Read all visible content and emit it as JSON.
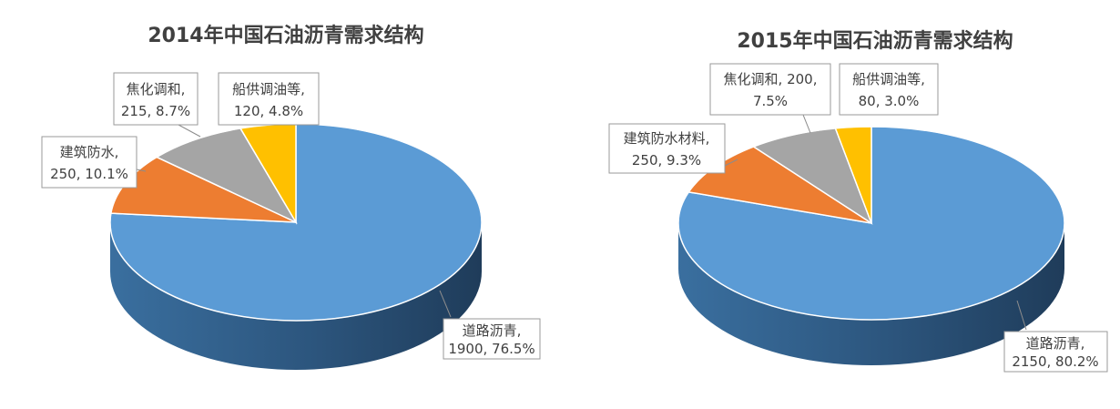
{
  "chart_data": [
    {
      "type": "pie",
      "title": "2014年中国石油沥青需求结构",
      "slices": [
        {
          "name": "道路沥青",
          "value": 1900,
          "percent": "76.5%",
          "color": "#5b9bd5",
          "label_line1": "道路沥青,",
          "label_line2": "1900, 76.5%"
        },
        {
          "name": "建筑防水",
          "value": 250,
          "percent": "10.1%",
          "color": "#ed7d31",
          "label_line1": "建筑防水,",
          "label_line2": "250, 10.1%"
        },
        {
          "name": "焦化调和",
          "value": 215,
          "percent": "8.7%",
          "color": "#a5a5a5",
          "label_line1": "焦化调和,",
          "label_line2": "215, 8.7%"
        },
        {
          "name": "船供调油等",
          "value": 120,
          "percent": "4.8%",
          "color": "#ffc000",
          "label_line1": "船供调油等,",
          "label_line2": "120, 4.8%"
        }
      ]
    },
    {
      "type": "pie",
      "title": "2015年中国石油沥青需求结构",
      "slices": [
        {
          "name": "道路沥青",
          "value": 2150,
          "percent": "80.2%",
          "color": "#5b9bd5",
          "label_line1": "道路沥青,",
          "label_line2": "2150, 80.2%"
        },
        {
          "name": "建筑防水材料",
          "value": 250,
          "percent": "9.3%",
          "color": "#ed7d31",
          "label_line1": "建筑防水材料,",
          "label_line2": "250, 9.3%"
        },
        {
          "name": "焦化调和",
          "value": 200,
          "percent": "7.5%",
          "color": "#a5a5a5",
          "label_line1": "焦化调和, 200,",
          "label_line2": "7.5%"
        },
        {
          "name": "船供调油等",
          "value": 80,
          "percent": "3.0%",
          "color": "#ffc000",
          "label_line1": "船供调油等,",
          "label_line2": "80, 3.0%"
        }
      ]
    }
  ]
}
